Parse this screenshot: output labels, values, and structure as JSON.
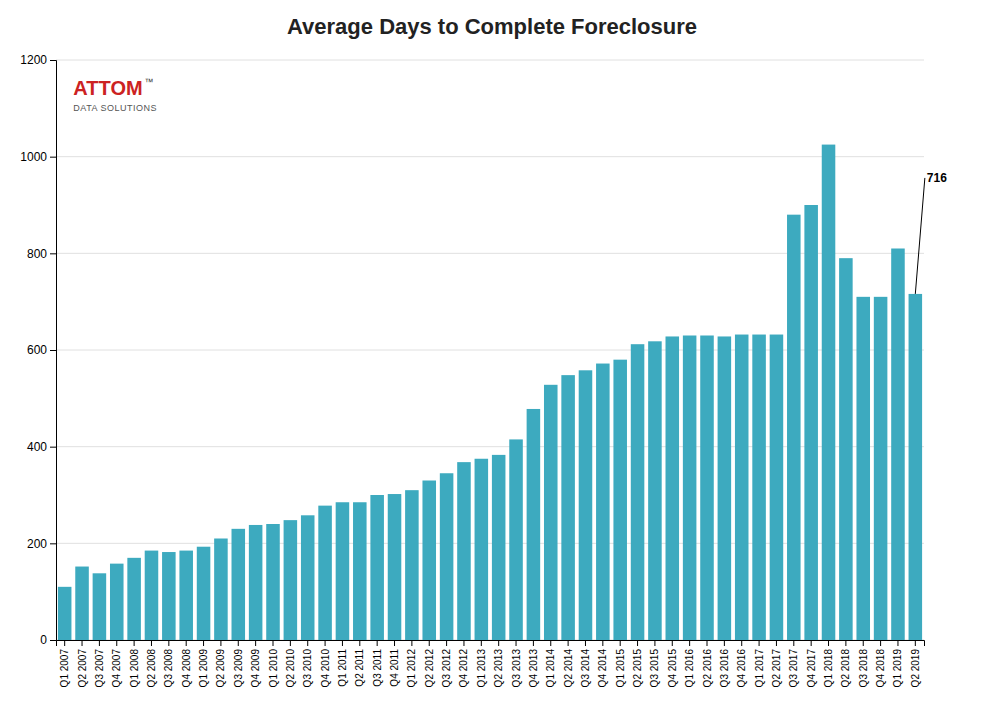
{
  "chart_data": {
    "type": "bar",
    "title": "Average Days to Complete Foreclosure",
    "categories": [
      "Q1 2007",
      "Q2 2007",
      "Q3 2007",
      "Q4 2007",
      "Q1 2008",
      "Q2 2008",
      "Q3 2008",
      "Q4 2008",
      "Q1 2009",
      "Q2 2009",
      "Q3 2009",
      "Q4 2009",
      "Q1 2010",
      "Q2 2010",
      "Q3 2010",
      "Q4 2010",
      "Q1 2011",
      "Q2 2011",
      "Q3 2011",
      "Q4 2011",
      "Q1 2012",
      "Q2 2012",
      "Q3 2012",
      "Q4 2012",
      "Q1 2013",
      "Q2 2013",
      "Q3 2013",
      "Q4 2013",
      "Q1 2014",
      "Q2 2014",
      "Q3 2014",
      "Q4 2014",
      "Q1 2015",
      "Q2 2015",
      "Q3 2015",
      "Q4 2015",
      "Q1 2016",
      "Q2 2016",
      "Q3 2016",
      "Q4 2016",
      "Q1 2017",
      "Q2 2017",
      "Q3 2017",
      "Q4 2017",
      "Q1 2018",
      "Q2 2018",
      "Q3 2018",
      "Q4 2018",
      "Q1 2019",
      "Q2 2019"
    ],
    "values": [
      110,
      152,
      138,
      158,
      170,
      185,
      182,
      185,
      193,
      210,
      230,
      238,
      240,
      248,
      258,
      278,
      285,
      285,
      300,
      302,
      310,
      330,
      345,
      368,
      375,
      383,
      415,
      478,
      528,
      548,
      558,
      572,
      580,
      612,
      618,
      628,
      630,
      630,
      628,
      632,
      632,
      632,
      880,
      900,
      1025,
      790,
      710,
      710,
      810,
      716
    ],
    "color": "#3DAABF",
    "ylim": [
      0,
      1200
    ],
    "yticks": [
      0,
      200,
      400,
      600,
      800,
      1000,
      1200
    ],
    "grid": true,
    "annotations": [
      {
        "text": "716",
        "x": "Q2 2019",
        "y": 716
      },
      {
        "text": "ATTOM",
        "color": "#CC2222"
      },
      {
        "text": "™"
      },
      {
        "text": "DATA SOLUTIONS",
        "color": "#555555"
      }
    ]
  }
}
